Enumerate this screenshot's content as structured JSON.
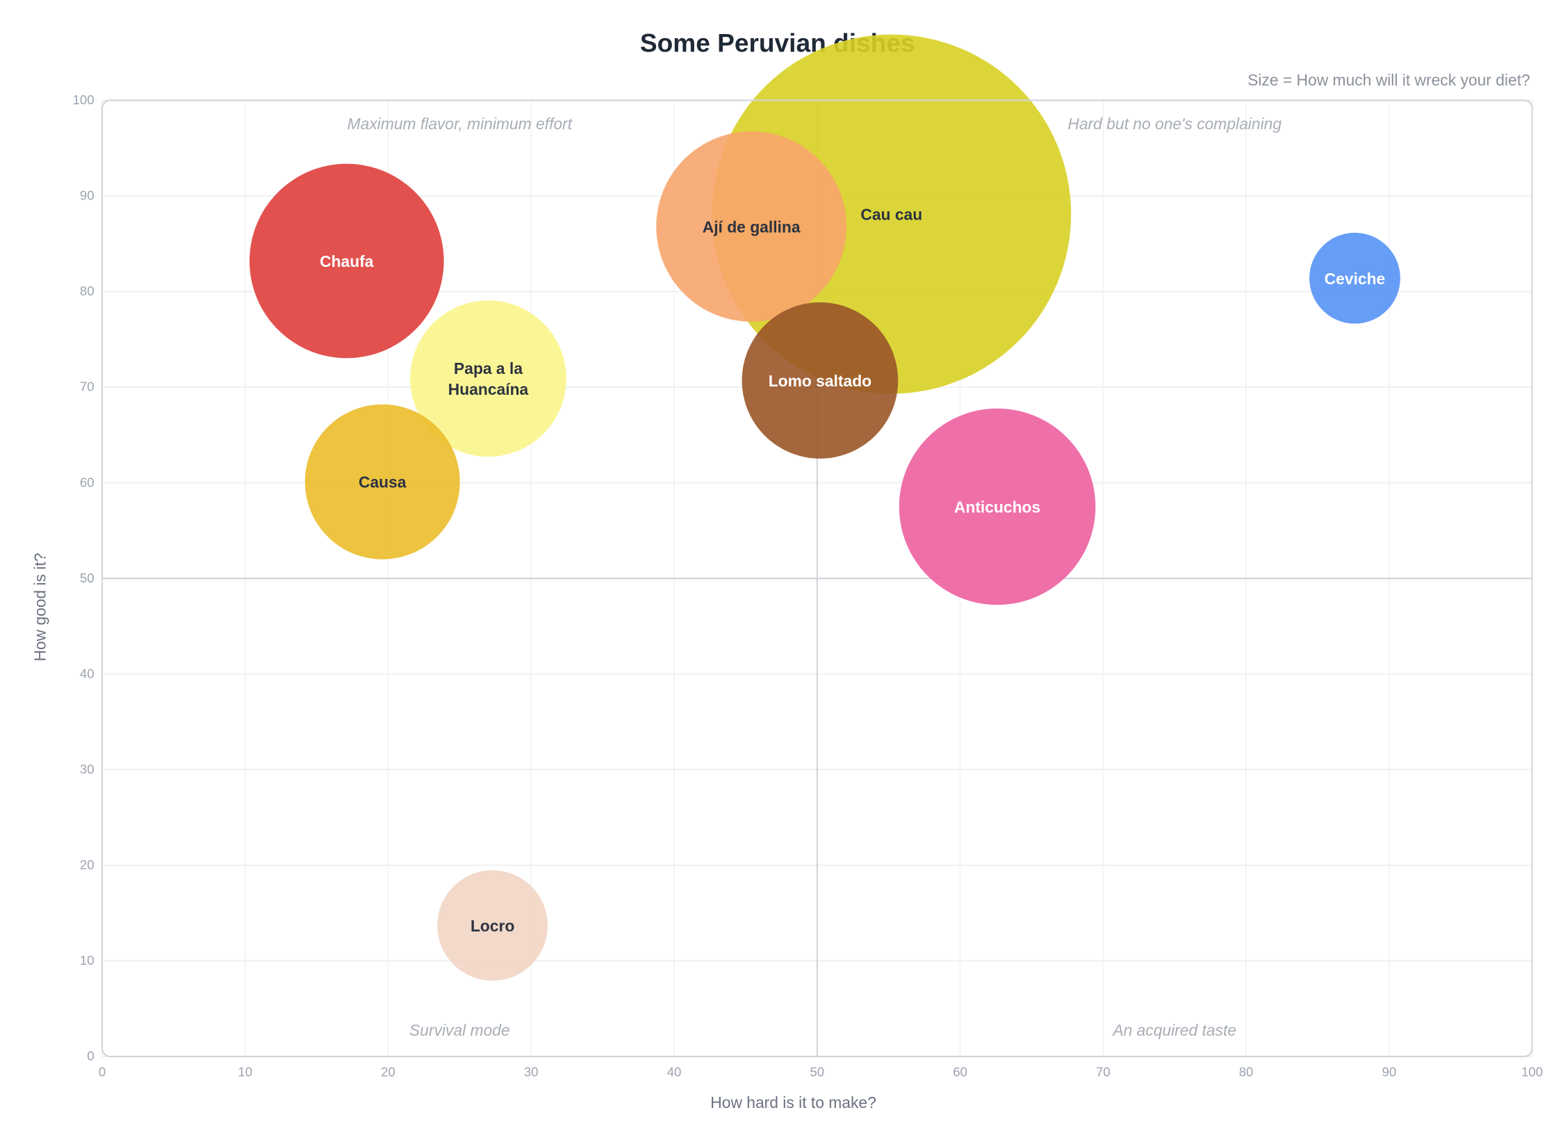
{
  "chart_data": {
    "type": "bubble",
    "title": "Some Peruvian dishes",
    "size_label": "Size = How much will it wreck your diet?",
    "xlabel": "How hard is it to make?",
    "ylabel": "How good is it?",
    "xlim": [
      0,
      100
    ],
    "ylim": [
      0,
      100
    ],
    "xticks": [
      "0",
      "10",
      "20",
      "30",
      "40",
      "50",
      "60",
      "70",
      "80",
      "90",
      "100"
    ],
    "yticks": [
      "0",
      "10",
      "20",
      "30",
      "40",
      "50",
      "60",
      "70",
      "80",
      "90",
      "100"
    ],
    "grid": true,
    "quadrant_dividers": {
      "x": 50,
      "y": 50
    },
    "quadrant_labels": [
      {
        "text": "Maximum flavor, minimum effort",
        "x": 25,
        "y": 97.5
      },
      {
        "text": "Hard but no one's complaining",
        "x": 75,
        "y": 97.5
      },
      {
        "text": "Survival mode",
        "x": 25,
        "y": 2.7
      },
      {
        "text": "An acquired taste",
        "x": 75,
        "y": 2.7
      }
    ],
    "points": [
      {
        "name": "Cau cau",
        "x": 55.2,
        "y": 88.1,
        "size": 328,
        "color": "#d8d023",
        "label_color": "#2d3340"
      },
      {
        "name": "Ají de gallina",
        "x": 45.4,
        "y": 86.8,
        "size": 92,
        "color": "#f7a56c",
        "label_color": "#2d3340"
      },
      {
        "name": "Chaufa",
        "x": 17.1,
        "y": 83.2,
        "size": 96,
        "color": "#df3e3b",
        "label_color": "#ffffff"
      },
      {
        "name": "Papa a la Huancaína",
        "x": 27.0,
        "y": 70.9,
        "size": 62,
        "color": "#f9f58a",
        "label_color": "#2d3340",
        "label_lines": [
          "Papa a la",
          "Huancaína"
        ]
      },
      {
        "name": "Causa",
        "x": 19.6,
        "y": 60.1,
        "size": 61,
        "color": "#ebbc2b",
        "label_color": "#2d3340"
      },
      {
        "name": "Lomo saltado",
        "x": 50.2,
        "y": 70.7,
        "size": 62,
        "color": "#9a5528",
        "label_color": "#ffffff"
      },
      {
        "name": "Anticuchos",
        "x": 62.6,
        "y": 57.5,
        "size": 98,
        "color": "#ed5fa0",
        "label_color": "#ffffff"
      },
      {
        "name": "Ceviche",
        "x": 87.6,
        "y": 81.4,
        "size": 21,
        "color": "#5592f5",
        "label_color": "#ffffff"
      },
      {
        "name": "Locro",
        "x": 27.3,
        "y": 13.7,
        "size": 31,
        "color": "#f1d5c4",
        "label_color": "#2d3340"
      }
    ]
  }
}
